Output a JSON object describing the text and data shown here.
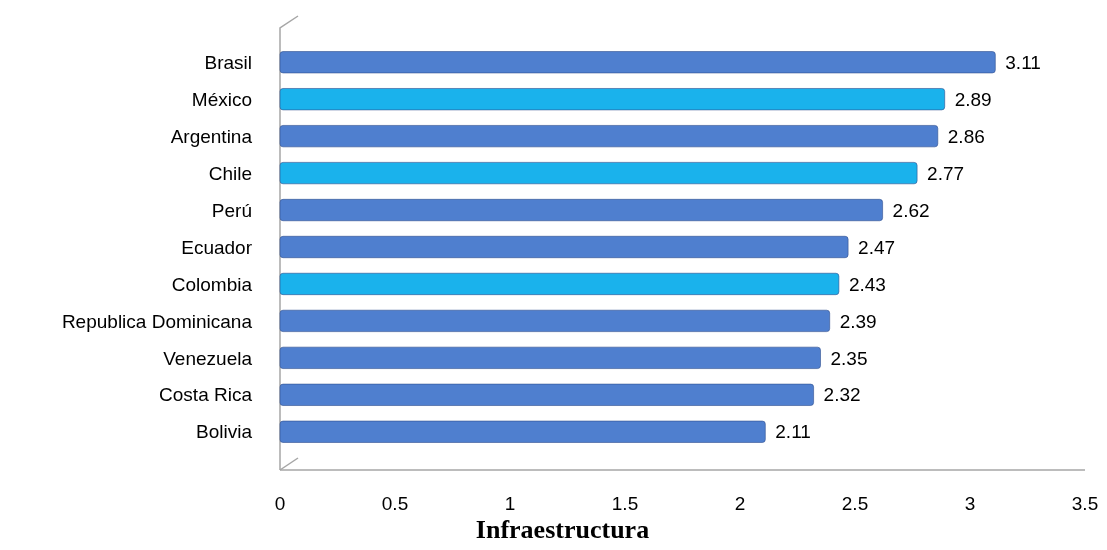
{
  "chart_data": {
    "type": "bar",
    "orientation": "horizontal",
    "xlabel": "Infraestructura",
    "categories": [
      "Brasil",
      "México",
      "Argentina",
      "Chile",
      "Perú",
      "Ecuador",
      "Colombia",
      "Republica Dominicana",
      "Venezuela",
      "Costa Rica",
      "Bolivia"
    ],
    "values": [
      3.11,
      2.89,
      2.86,
      2.77,
      2.62,
      2.47,
      2.43,
      2.39,
      2.35,
      2.32,
      2.11
    ],
    "colors": [
      "#4f7fcf",
      "#1ab2ec",
      "#4f7fcf",
      "#1ab2ec",
      "#4f7fcf",
      "#4f7fcf",
      "#1ab2ec",
      "#4f7fcf",
      "#4f7fcf",
      "#4f7fcf",
      "#4f7fcf"
    ],
    "xlim": [
      0,
      3.5
    ],
    "xticks": [
      0,
      0.5,
      1,
      1.5,
      2,
      2.5,
      3,
      3.5
    ],
    "data_labels": true,
    "grid": false
  }
}
